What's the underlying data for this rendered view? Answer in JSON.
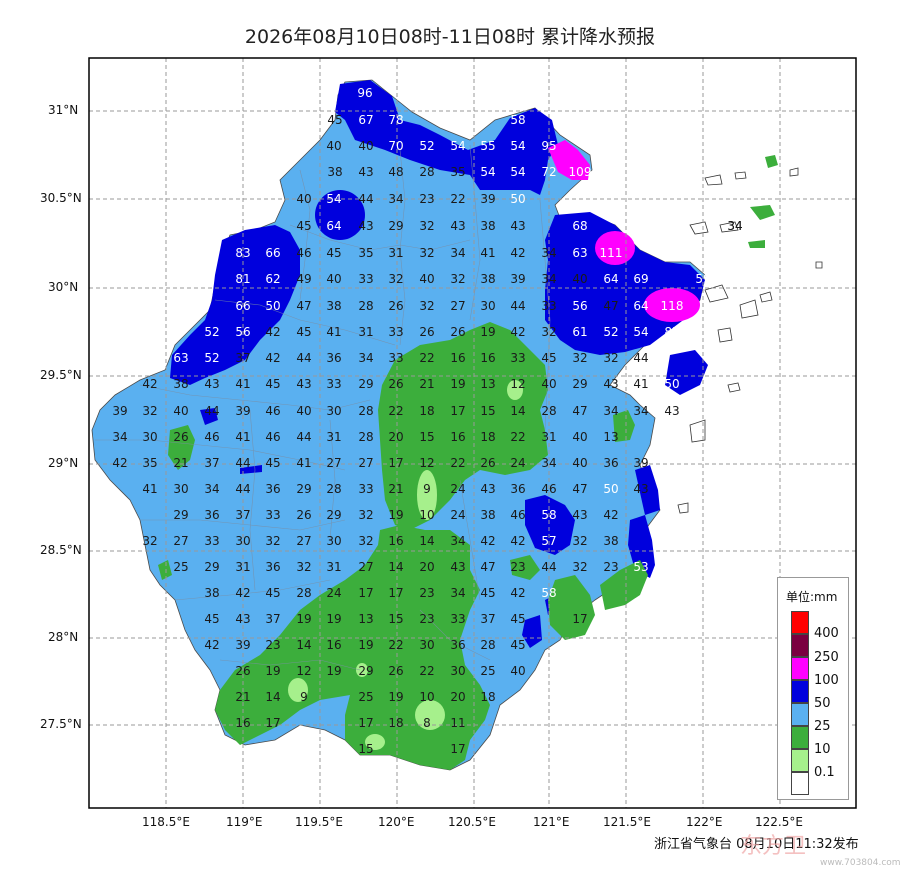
{
  "title": "2026年08月10日08时-11日08时 累计降水预报",
  "lat_labels": [
    "31°N",
    "30.5°N",
    "30°N",
    "29.5°N",
    "29°N",
    "28.5°N",
    "28°N",
    "27.5°N"
  ],
  "lon_labels": [
    "118.5°E",
    "119°E",
    "119.5°E",
    "120°E",
    "120.5°E",
    "121°E",
    "121.5°E",
    "122°E",
    "122.5°E"
  ],
  "legend": {
    "title": "单位:mm",
    "items": [
      {
        "label": "400",
        "color": "#ff0000"
      },
      {
        "label": "250",
        "color": "#7a0040"
      },
      {
        "label": "100",
        "color": "#ff00ff"
      },
      {
        "label": "50",
        "color": "#0000dd"
      },
      {
        "label": "25",
        "color": "#5ab0f0"
      },
      {
        "label": "10",
        "color": "#3cae3c"
      },
      {
        "label": "0.1",
        "color": "#a6f08c"
      },
      {
        "label": "",
        "color": "#ffffff"
      }
    ]
  },
  "footer": "浙江省气象台 08月10日11:32发布",
  "watermark": "东方卫",
  "watermark_sub": "www.703804.com",
  "station_values": [
    {
      "v": "96"
    },
    {
      "v": "45"
    },
    {
      "v": "67"
    },
    {
      "v": "78"
    },
    {
      "v": "58"
    },
    {
      "v": "40"
    },
    {
      "v": "40"
    },
    {
      "v": "70"
    },
    {
      "v": "52"
    },
    {
      "v": "54"
    },
    {
      "v": "55"
    },
    {
      "v": "54"
    },
    {
      "v": "95"
    },
    {
      "v": "38"
    },
    {
      "v": "43"
    },
    {
      "v": "48"
    },
    {
      "v": "28"
    },
    {
      "v": "35"
    },
    {
      "v": "54"
    },
    {
      "v": "54"
    },
    {
      "v": "72"
    },
    {
      "v": "109"
    },
    {
      "v": "40"
    },
    {
      "v": "54"
    },
    {
      "v": "44"
    },
    {
      "v": "34"
    },
    {
      "v": "23"
    },
    {
      "v": "22"
    },
    {
      "v": "39"
    },
    {
      "v": "50"
    },
    {
      "v": "45"
    },
    {
      "v": "64"
    },
    {
      "v": "43"
    },
    {
      "v": "29"
    },
    {
      "v": "32"
    },
    {
      "v": "43"
    },
    {
      "v": "38"
    },
    {
      "v": "43"
    },
    {
      "v": "68"
    },
    {
      "v": "34"
    },
    {
      "v": "83"
    },
    {
      "v": "66"
    },
    {
      "v": "46"
    },
    {
      "v": "45"
    },
    {
      "v": "35"
    },
    {
      "v": "31"
    },
    {
      "v": "32"
    },
    {
      "v": "34"
    },
    {
      "v": "41"
    },
    {
      "v": "42"
    },
    {
      "v": "34"
    },
    {
      "v": "63"
    },
    {
      "v": "111"
    },
    {
      "v": "81"
    },
    {
      "v": "62"
    },
    {
      "v": "49"
    },
    {
      "v": "40"
    },
    {
      "v": "33"
    },
    {
      "v": "32"
    },
    {
      "v": "40"
    },
    {
      "v": "32"
    },
    {
      "v": "38"
    },
    {
      "v": "39"
    },
    {
      "v": "34"
    },
    {
      "v": "40"
    },
    {
      "v": "64"
    },
    {
      "v": "69"
    },
    {
      "v": "59"
    },
    {
      "v": "52"
    },
    {
      "v": "66"
    },
    {
      "v": "50"
    },
    {
      "v": "47"
    },
    {
      "v": "38"
    },
    {
      "v": "28"
    },
    {
      "v": "26"
    },
    {
      "v": "32"
    },
    {
      "v": "27"
    },
    {
      "v": "30"
    },
    {
      "v": "44"
    },
    {
      "v": "33"
    },
    {
      "v": "56"
    },
    {
      "v": "47"
    },
    {
      "v": "64"
    },
    {
      "v": "118"
    },
    {
      "v": "52"
    },
    {
      "v": "56"
    },
    {
      "v": "42"
    },
    {
      "v": "45"
    },
    {
      "v": "41"
    },
    {
      "v": "31"
    },
    {
      "v": "33"
    },
    {
      "v": "26"
    },
    {
      "v": "26"
    },
    {
      "v": "19"
    },
    {
      "v": "42"
    },
    {
      "v": "32"
    },
    {
      "v": "61"
    },
    {
      "v": "52"
    },
    {
      "v": "54"
    },
    {
      "v": "85"
    },
    {
      "v": "63"
    },
    {
      "v": "52"
    },
    {
      "v": "37"
    },
    {
      "v": "42"
    },
    {
      "v": "44"
    },
    {
      "v": "36"
    },
    {
      "v": "34"
    },
    {
      "v": "33"
    },
    {
      "v": "22"
    },
    {
      "v": "16"
    },
    {
      "v": "16"
    },
    {
      "v": "33"
    },
    {
      "v": "45"
    },
    {
      "v": "32"
    },
    {
      "v": "32"
    },
    {
      "v": "44"
    },
    {
      "v": "42"
    },
    {
      "v": "38"
    },
    {
      "v": "43"
    },
    {
      "v": "41"
    },
    {
      "v": "45"
    },
    {
      "v": "43"
    },
    {
      "v": "33"
    },
    {
      "v": "29"
    },
    {
      "v": "26"
    },
    {
      "v": "21"
    },
    {
      "v": "19"
    },
    {
      "v": "13"
    },
    {
      "v": "12"
    },
    {
      "v": "40"
    },
    {
      "v": "29"
    },
    {
      "v": "43"
    },
    {
      "v": "41"
    },
    {
      "v": "50"
    },
    {
      "v": "39"
    },
    {
      "v": "32"
    },
    {
      "v": "40"
    },
    {
      "v": "44"
    },
    {
      "v": "39"
    },
    {
      "v": "46"
    },
    {
      "v": "40"
    },
    {
      "v": "30"
    },
    {
      "v": "28"
    },
    {
      "v": "22"
    },
    {
      "v": "18"
    },
    {
      "v": "17"
    },
    {
      "v": "15"
    },
    {
      "v": "14"
    },
    {
      "v": "28"
    },
    {
      "v": "47"
    },
    {
      "v": "34"
    },
    {
      "v": "34"
    },
    {
      "v": "43"
    },
    {
      "v": "34"
    },
    {
      "v": "30"
    },
    {
      "v": "26"
    },
    {
      "v": "46"
    },
    {
      "v": "41"
    },
    {
      "v": "46"
    },
    {
      "v": "44"
    },
    {
      "v": "31"
    },
    {
      "v": "28"
    },
    {
      "v": "20"
    },
    {
      "v": "15"
    },
    {
      "v": "16"
    },
    {
      "v": "18"
    },
    {
      "v": "22"
    },
    {
      "v": "31"
    },
    {
      "v": "40"
    },
    {
      "v": "13"
    },
    {
      "v": "42"
    },
    {
      "v": "35"
    },
    {
      "v": "21"
    },
    {
      "v": "37"
    },
    {
      "v": "44"
    },
    {
      "v": "45"
    },
    {
      "v": "41"
    },
    {
      "v": "27"
    },
    {
      "v": "27"
    },
    {
      "v": "17"
    },
    {
      "v": "12"
    },
    {
      "v": "22"
    },
    {
      "v": "26"
    },
    {
      "v": "24"
    },
    {
      "v": "34"
    },
    {
      "v": "40"
    },
    {
      "v": "36"
    },
    {
      "v": "39"
    },
    {
      "v": "41"
    },
    {
      "v": "30"
    },
    {
      "v": "34"
    },
    {
      "v": "44"
    },
    {
      "v": "36"
    },
    {
      "v": "29"
    },
    {
      "v": "28"
    },
    {
      "v": "33"
    },
    {
      "v": "21"
    },
    {
      "v": "9"
    },
    {
      "v": "24"
    },
    {
      "v": "43"
    },
    {
      "v": "36"
    },
    {
      "v": "46"
    },
    {
      "v": "47"
    },
    {
      "v": "50"
    },
    {
      "v": "43"
    },
    {
      "v": "29"
    },
    {
      "v": "36"
    },
    {
      "v": "37"
    },
    {
      "v": "33"
    },
    {
      "v": "26"
    },
    {
      "v": "29"
    },
    {
      "v": "32"
    },
    {
      "v": "19"
    },
    {
      "v": "10"
    },
    {
      "v": "24"
    },
    {
      "v": "38"
    },
    {
      "v": "46"
    },
    {
      "v": "58"
    },
    {
      "v": "43"
    },
    {
      "v": "42"
    },
    {
      "v": "32"
    },
    {
      "v": "27"
    },
    {
      "v": "33"
    },
    {
      "v": "30"
    },
    {
      "v": "32"
    },
    {
      "v": "27"
    },
    {
      "v": "30"
    },
    {
      "v": "32"
    },
    {
      "v": "16"
    },
    {
      "v": "14"
    },
    {
      "v": "34"
    },
    {
      "v": "42"
    },
    {
      "v": "42"
    },
    {
      "v": "57"
    },
    {
      "v": "32"
    },
    {
      "v": "38"
    },
    {
      "v": "25"
    },
    {
      "v": "29"
    },
    {
      "v": "31"
    },
    {
      "v": "36"
    },
    {
      "v": "32"
    },
    {
      "v": "31"
    },
    {
      "v": "27"
    },
    {
      "v": "14"
    },
    {
      "v": "20"
    },
    {
      "v": "43"
    },
    {
      "v": "47"
    },
    {
      "v": "23"
    },
    {
      "v": "44"
    },
    {
      "v": "32"
    },
    {
      "v": "23"
    },
    {
      "v": "53"
    },
    {
      "v": "38"
    },
    {
      "v": "42"
    },
    {
      "v": "45"
    },
    {
      "v": "28"
    },
    {
      "v": "24"
    },
    {
      "v": "17"
    },
    {
      "v": "17"
    },
    {
      "v": "23"
    },
    {
      "v": "34"
    },
    {
      "v": "45"
    },
    {
      "v": "42"
    },
    {
      "v": "58"
    },
    {
      "v": "45"
    },
    {
      "v": "43"
    },
    {
      "v": "37"
    },
    {
      "v": "19"
    },
    {
      "v": "19"
    },
    {
      "v": "13"
    },
    {
      "v": "15"
    },
    {
      "v": "23"
    },
    {
      "v": "33"
    },
    {
      "v": "37"
    },
    {
      "v": "45"
    },
    {
      "v": "17"
    },
    {
      "v": "42"
    },
    {
      "v": "39"
    },
    {
      "v": "23"
    },
    {
      "v": "14"
    },
    {
      "v": "16"
    },
    {
      "v": "19"
    },
    {
      "v": "22"
    },
    {
      "v": "30"
    },
    {
      "v": "36"
    },
    {
      "v": "28"
    },
    {
      "v": "45"
    },
    {
      "v": "26"
    },
    {
      "v": "19"
    },
    {
      "v": "12"
    },
    {
      "v": "19"
    },
    {
      "v": "29"
    },
    {
      "v": "26"
    },
    {
      "v": "22"
    },
    {
      "v": "30"
    },
    {
      "v": "25"
    },
    {
      "v": "40"
    },
    {
      "v": "21"
    },
    {
      "v": "14"
    },
    {
      "v": "9"
    },
    {
      "v": "25"
    },
    {
      "v": "19"
    },
    {
      "v": "10"
    },
    {
      "v": "20"
    },
    {
      "v": "18"
    },
    {
      "v": "16"
    },
    {
      "v": "17"
    },
    {
      "v": "17"
    },
    {
      "v": "18"
    },
    {
      "v": "8"
    },
    {
      "v": "11"
    },
    {
      "v": "15"
    },
    {
      "v": "17"
    },
    {
      "v": "34"
    }
  ]
}
